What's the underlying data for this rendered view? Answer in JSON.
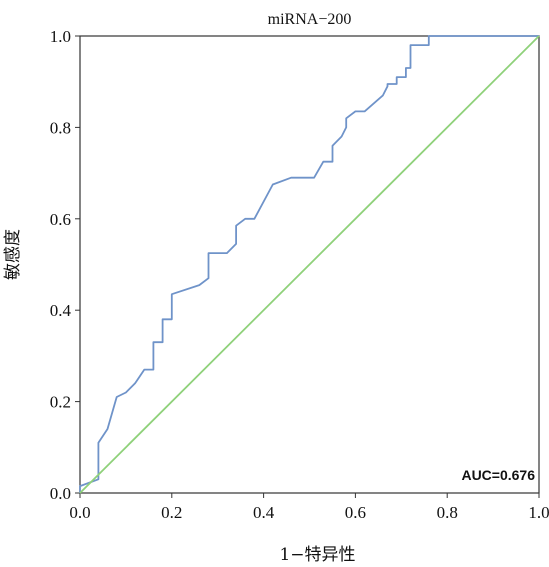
{
  "chart_data": {
    "type": "line",
    "title": "miRNA−200",
    "xlabel": "1−特异性",
    "ylabel": "敏感度",
    "xlim": [
      0,
      1
    ],
    "ylim": [
      0,
      1
    ],
    "x_ticks": [
      "0.0",
      "0.2",
      "0.4",
      "0.6",
      "0.8",
      "1.0"
    ],
    "y_ticks": [
      "0.0",
      "0.2",
      "0.4",
      "0.6",
      "0.8",
      "1.0"
    ],
    "annotation": "AUC=0.676",
    "grid": false,
    "colors": {
      "roc": "#6f93c9",
      "reference": "#8fd17a",
      "frame": "#333333"
    },
    "series": [
      {
        "kind": "roc",
        "x": [
          0.0,
          0.0,
          0.04,
          0.04,
          0.06,
          0.08,
          0.1,
          0.12,
          0.14,
          0.16,
          0.16,
          0.18,
          0.18,
          0.2,
          0.2,
          0.26,
          0.28,
          0.28,
          0.32,
          0.34,
          0.34,
          0.36,
          0.38,
          0.42,
          0.46,
          0.51,
          0.53,
          0.55,
          0.55,
          0.57,
          0.58,
          0.58,
          0.6,
          0.62,
          0.66,
          0.67,
          0.67,
          0.69,
          0.69,
          0.71,
          0.71,
          0.72,
          0.72,
          0.76,
          0.76,
          1.0
        ],
        "y": [
          0.0,
          0.015,
          0.03,
          0.11,
          0.14,
          0.21,
          0.22,
          0.24,
          0.27,
          0.27,
          0.33,
          0.33,
          0.38,
          0.38,
          0.435,
          0.455,
          0.47,
          0.525,
          0.525,
          0.545,
          0.585,
          0.6,
          0.6,
          0.675,
          0.69,
          0.69,
          0.725,
          0.725,
          0.76,
          0.78,
          0.8,
          0.82,
          0.835,
          0.835,
          0.87,
          0.89,
          0.895,
          0.895,
          0.91,
          0.91,
          0.93,
          0.93,
          0.98,
          0.98,
          1.0,
          1.0
        ]
      },
      {
        "kind": "reference",
        "x": [
          0,
          1
        ],
        "y": [
          0,
          1
        ]
      }
    ]
  }
}
